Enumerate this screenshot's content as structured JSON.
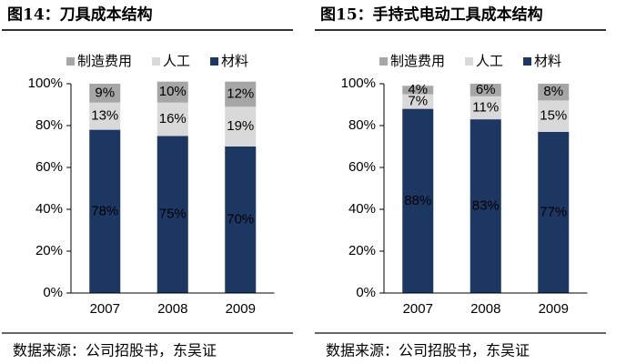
{
  "chart_data": [
    {
      "type": "stacked_bar",
      "title": "图14：刀具成本结构",
      "source": "数据来源：公司招股书，东吴证",
      "categories": [
        "2007",
        "2008",
        "2009"
      ],
      "series": [
        {
          "name": "材料",
          "color": "#1d3763",
          "values": [
            78,
            75,
            70
          ],
          "value_labels": [
            "78%",
            "75%",
            "70%"
          ]
        },
        {
          "name": "人工",
          "color": "#d9d9d9",
          "values": [
            13,
            16,
            19
          ],
          "value_labels": [
            "13%",
            "16%",
            "19%"
          ]
        },
        {
          "name": "制造费用",
          "color": "#a6a6a6",
          "values": [
            9,
            10,
            12
          ],
          "value_labels": [
            "9%",
            "10%",
            "12%"
          ]
        }
      ],
      "ylim": [
        0,
        100
      ],
      "yticks": [
        {
          "value": 0,
          "label": "0%"
        },
        {
          "value": 20,
          "label": "20%"
        },
        {
          "value": 40,
          "label": "40%"
        },
        {
          "value": 60,
          "label": "60%"
        },
        {
          "value": 80,
          "label": "80%"
        },
        {
          "value": 100,
          "label": "100%"
        }
      ]
    },
    {
      "type": "stacked_bar",
      "title": "图15：手持式电动工具成本结构",
      "source": "数据来源：公司招股书，东吴证",
      "categories": [
        "2007",
        "2008",
        "2009"
      ],
      "series": [
        {
          "name": "材料",
          "color": "#1d3763",
          "values": [
            88,
            83,
            77
          ],
          "value_labels": [
            "88%",
            "83%",
            "77%"
          ]
        },
        {
          "name": "人工",
          "color": "#d9d9d9",
          "values": [
            7,
            11,
            15
          ],
          "value_labels": [
            "7%",
            "11%",
            "15%"
          ]
        },
        {
          "name": "制造费用",
          "color": "#a6a6a6",
          "values": [
            4,
            6,
            8
          ],
          "value_labels": [
            "4%",
            "6%",
            "8%"
          ]
        }
      ],
      "ylim": [
        0,
        100
      ],
      "yticks": [
        {
          "value": 0,
          "label": "0%"
        },
        {
          "value": 20,
          "label": "20%"
        },
        {
          "value": 40,
          "label": "40%"
        },
        {
          "value": 60,
          "label": "60%"
        },
        {
          "value": 80,
          "label": "80%"
        },
        {
          "value": 100,
          "label": "100%"
        }
      ]
    }
  ]
}
